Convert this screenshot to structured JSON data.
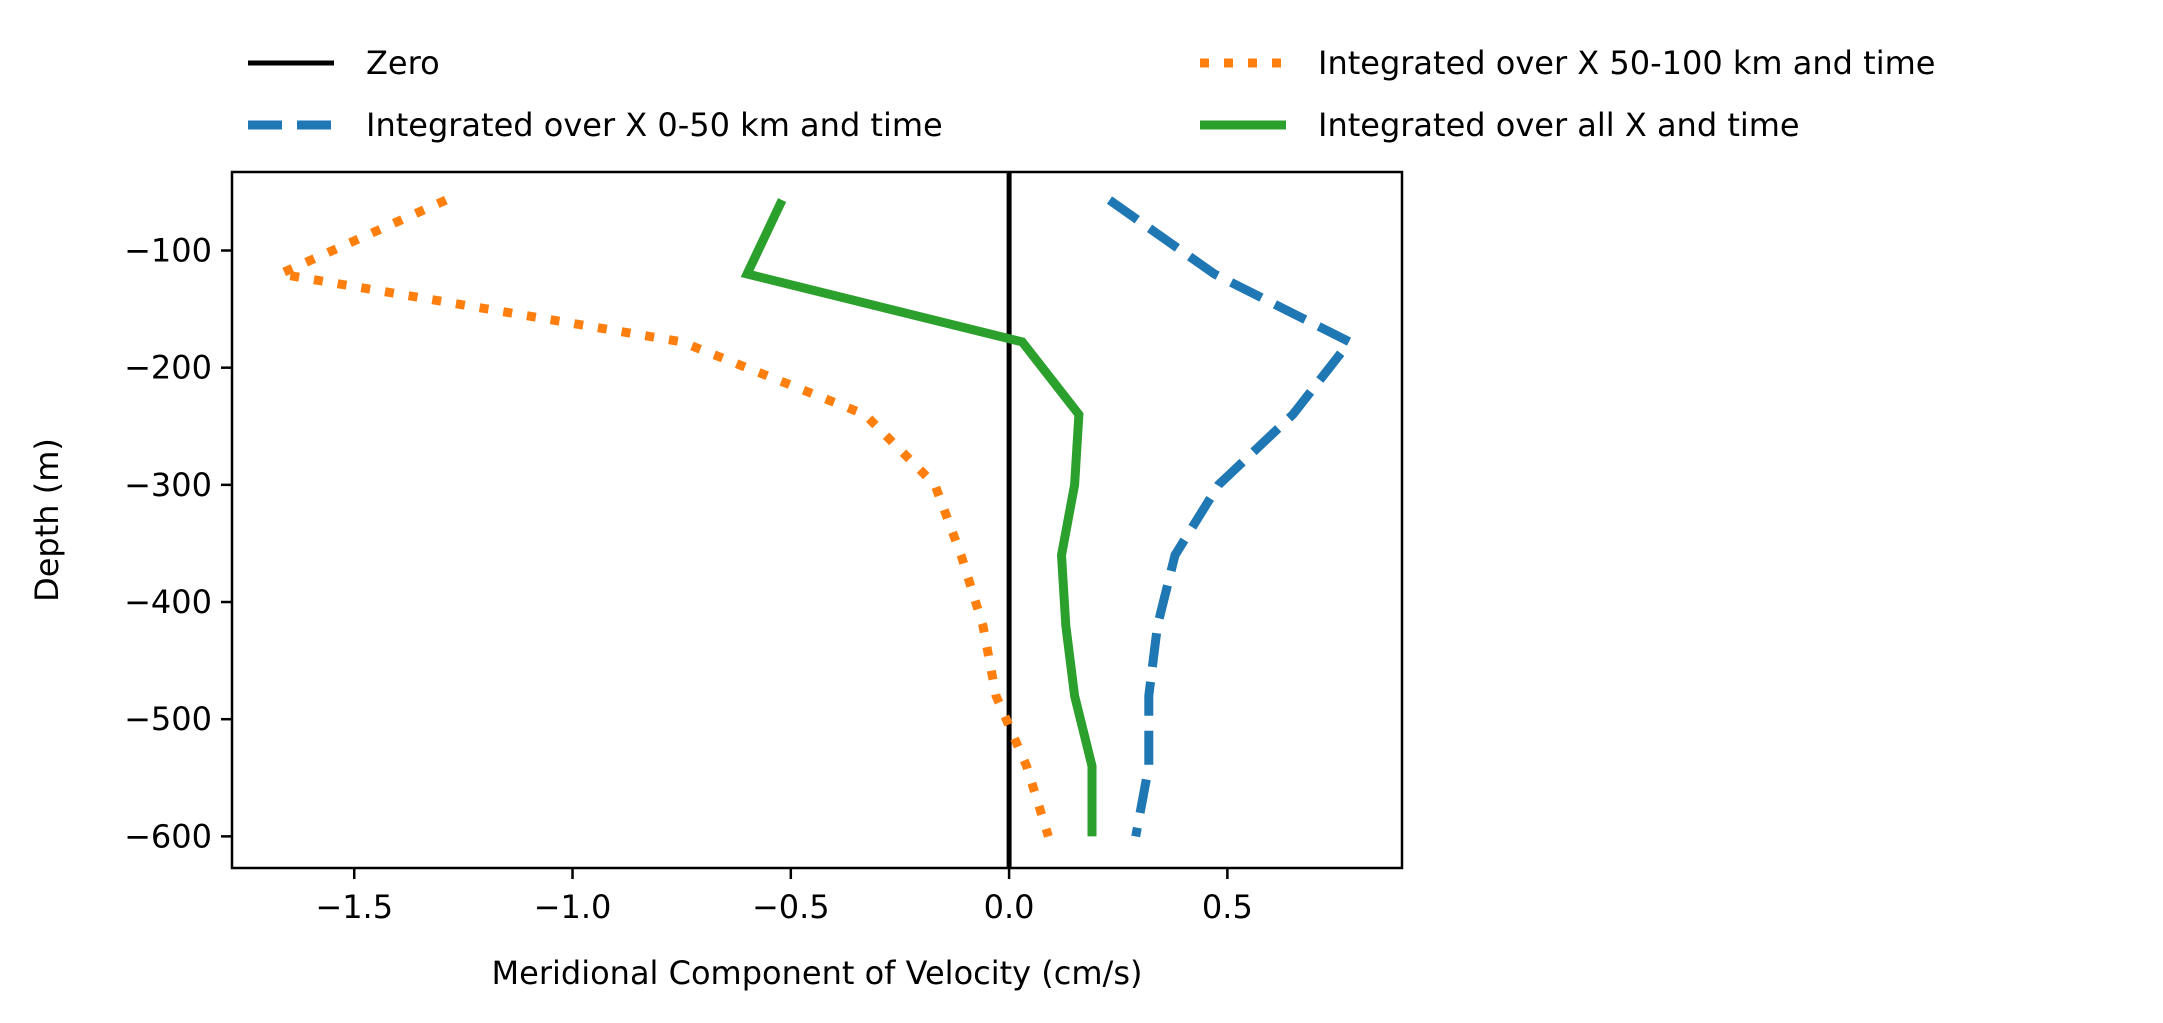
{
  "chart_data": {
    "type": "line",
    "title": "",
    "xlabel": "Meridional Component of Velocity (cm/s)",
    "ylabel": "Depth (m)",
    "xlim": [
      -1.78,
      0.9
    ],
    "ylim": [
      -627,
      -33
    ],
    "xticks": [
      -1.5,
      -1.0,
      -0.5,
      0.0,
      0.5
    ],
    "xtick_labels": [
      "−1.5",
      "−1.0",
      "−0.5",
      "0.0",
      "0.5"
    ],
    "yticks": [
      -100,
      -200,
      -300,
      -400,
      -500,
      -600
    ],
    "ytick_labels": [
      "−100",
      "−200",
      "−300",
      "−400",
      "−500",
      "−600"
    ],
    "grid": false,
    "legend_placement": "top, outside plot, two columns",
    "series": [
      {
        "name": "Zero",
        "color": "#000000",
        "style": "solid",
        "points": [
          [
            0.0,
            -627
          ],
          [
            0.0,
            -33
          ]
        ]
      },
      {
        "name": "Integrated over X 0-50 km and time",
        "color": "#1f77b4",
        "style": "dashed",
        "points": [
          [
            0.23,
            -57
          ],
          [
            0.47,
            -120
          ],
          [
            0.78,
            -178
          ],
          [
            0.65,
            -240
          ],
          [
            0.48,
            -300
          ],
          [
            0.38,
            -360
          ],
          [
            0.34,
            -420
          ],
          [
            0.32,
            -480
          ],
          [
            0.32,
            -540
          ],
          [
            0.29,
            -600
          ]
        ]
      },
      {
        "name": "Integrated over X 50-100 km and time",
        "color": "#ff7f0e",
        "style": "dotted",
        "points": [
          [
            -1.29,
            -57
          ],
          [
            -1.67,
            -120
          ],
          [
            -0.75,
            -178
          ],
          [
            -0.33,
            -240
          ],
          [
            -0.17,
            -300
          ],
          [
            -0.11,
            -360
          ],
          [
            -0.06,
            -420
          ],
          [
            -0.03,
            -480
          ],
          [
            0.04,
            -540
          ],
          [
            0.09,
            -600
          ]
        ]
      },
      {
        "name": "Integrated over all X and time",
        "color": "#2ca02c",
        "style": "solid",
        "points": [
          [
            -0.52,
            -57
          ],
          [
            -0.6,
            -120
          ],
          [
            0.03,
            -178
          ],
          [
            0.16,
            -240
          ],
          [
            0.15,
            -300
          ],
          [
            0.12,
            -360
          ],
          [
            0.13,
            -420
          ],
          [
            0.15,
            -480
          ],
          [
            0.19,
            -540
          ],
          [
            0.19,
            -600
          ]
        ]
      }
    ]
  }
}
